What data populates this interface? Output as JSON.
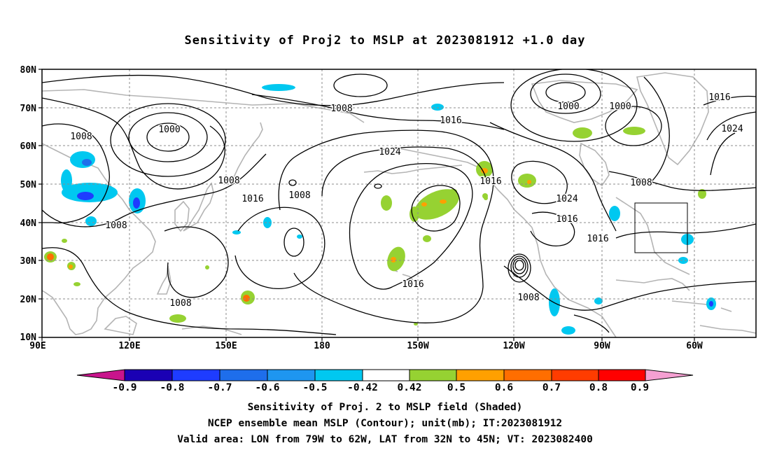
{
  "title": "Sensitivity of Proj2 to MSLP at 2023081912 +1.0 day",
  "map": {
    "lat_labels": [
      "80N",
      "70N",
      "60N",
      "50N",
      "40N",
      "30N",
      "20N",
      "10N"
    ],
    "lon_labels": [
      "90E",
      "120E",
      "150E",
      "180",
      "150W",
      "120W",
      "90W",
      "60W"
    ],
    "lon_range": [
      90,
      310
    ],
    "lat_range": [
      10,
      80
    ],
    "valid_area": {
      "lon": [
        281,
        298
      ],
      "lat": [
        32,
        45
      ]
    },
    "contour_labels": [
      "1008",
      "1000",
      "1008",
      "1008",
      "1008",
      "1016",
      "1008",
      "1016",
      "1024",
      "1016",
      "1016",
      "1024",
      "1016",
      "1016",
      "1000",
      "1000",
      "1016",
      "1024",
      "1008",
      "1008",
      "1016",
      "1008"
    ],
    "colors": {
      "land": "#b4b4b4",
      "contour": "#000000",
      "grid": "#8c8c8c"
    }
  },
  "colorbar": {
    "labels": [
      "-0.9",
      "-0.8",
      "-0.7",
      "-0.6",
      "-0.5",
      "-0.42",
      "0.42",
      "0.5",
      "0.6",
      "0.7",
      "0.8",
      "0.9"
    ],
    "colors": [
      "#1a00b4",
      "#1e3cff",
      "#1e6eeb",
      "#1e96f0",
      "#00c8f0",
      "#ffffff",
      "#96d232",
      "#ffa000",
      "#ff6e00",
      "#ff3c00",
      "#ff0000"
    ],
    "low_color": "#c8148c",
    "high_color": "#f5a0d2"
  },
  "captions": [
    "Sensitivity of Proj. 2 to MSLP field (Shaded)",
    "NCEP ensemble mean MSLP (Contour); unit(mb); IT:2023081912",
    "Valid area: LON from 79W to 62W, LAT from 32N to 45N; VT: 2023082400"
  ]
}
